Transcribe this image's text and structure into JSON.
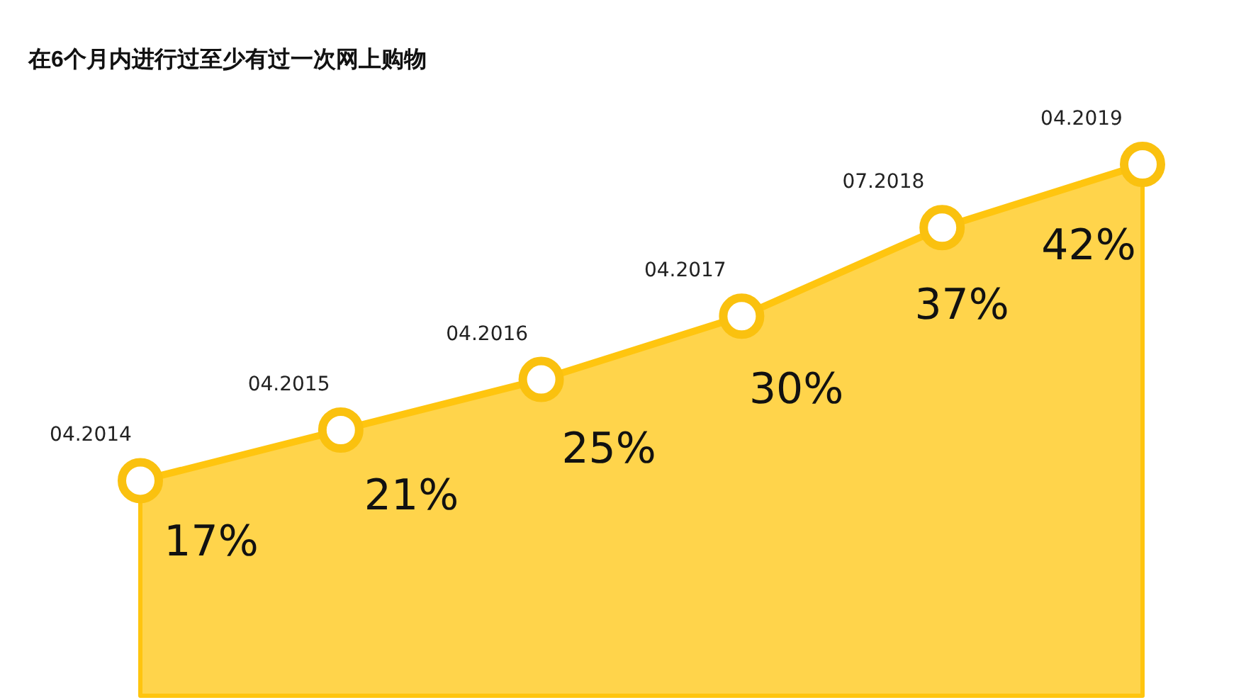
{
  "chart_data": {
    "type": "area",
    "title": "在6个月内进行过至少有过一次网上购物",
    "categories": [
      "04.2014",
      "04.2015",
      "04.2016",
      "04.2017",
      "07.2018",
      "04.2019"
    ],
    "values": [
      17,
      21,
      25,
      30,
      37,
      42
    ],
    "value_labels": [
      "17%",
      "21%",
      "25%",
      "30%",
      "37%",
      "42%"
    ],
    "color": "#ffc50f",
    "marker": "circle"
  }
}
